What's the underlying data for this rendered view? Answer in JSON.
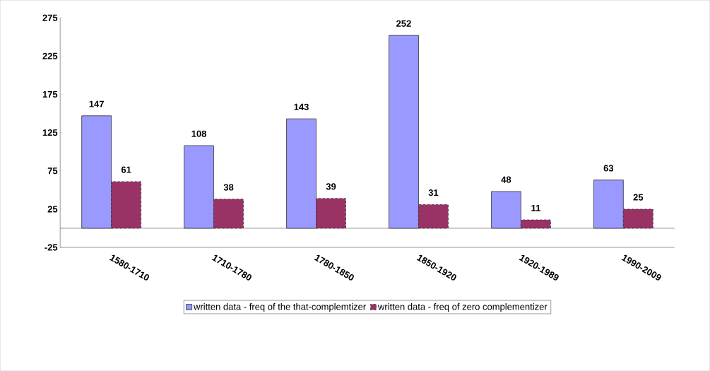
{
  "chart_data": {
    "type": "bar",
    "categories": [
      "1580-1710",
      "1710-1780",
      "1780-1850",
      "1850-1920",
      "1920-1989",
      "1990-2009"
    ],
    "series": [
      {
        "name": "written data - freq of the that-complemtizer",
        "color": "#9999ff",
        "values": [
          147,
          108,
          143,
          252,
          48,
          63
        ]
      },
      {
        "name": "written data - freq of zero complementizer",
        "color": "#993366",
        "values": [
          61,
          38,
          39,
          31,
          11,
          25
        ],
        "line_style": "dashed"
      }
    ],
    "ylim": [
      -25,
      275
    ],
    "yticks": [
      -25,
      25,
      75,
      125,
      175,
      225,
      275
    ],
    "data_labels": true,
    "legend": "bottom"
  }
}
